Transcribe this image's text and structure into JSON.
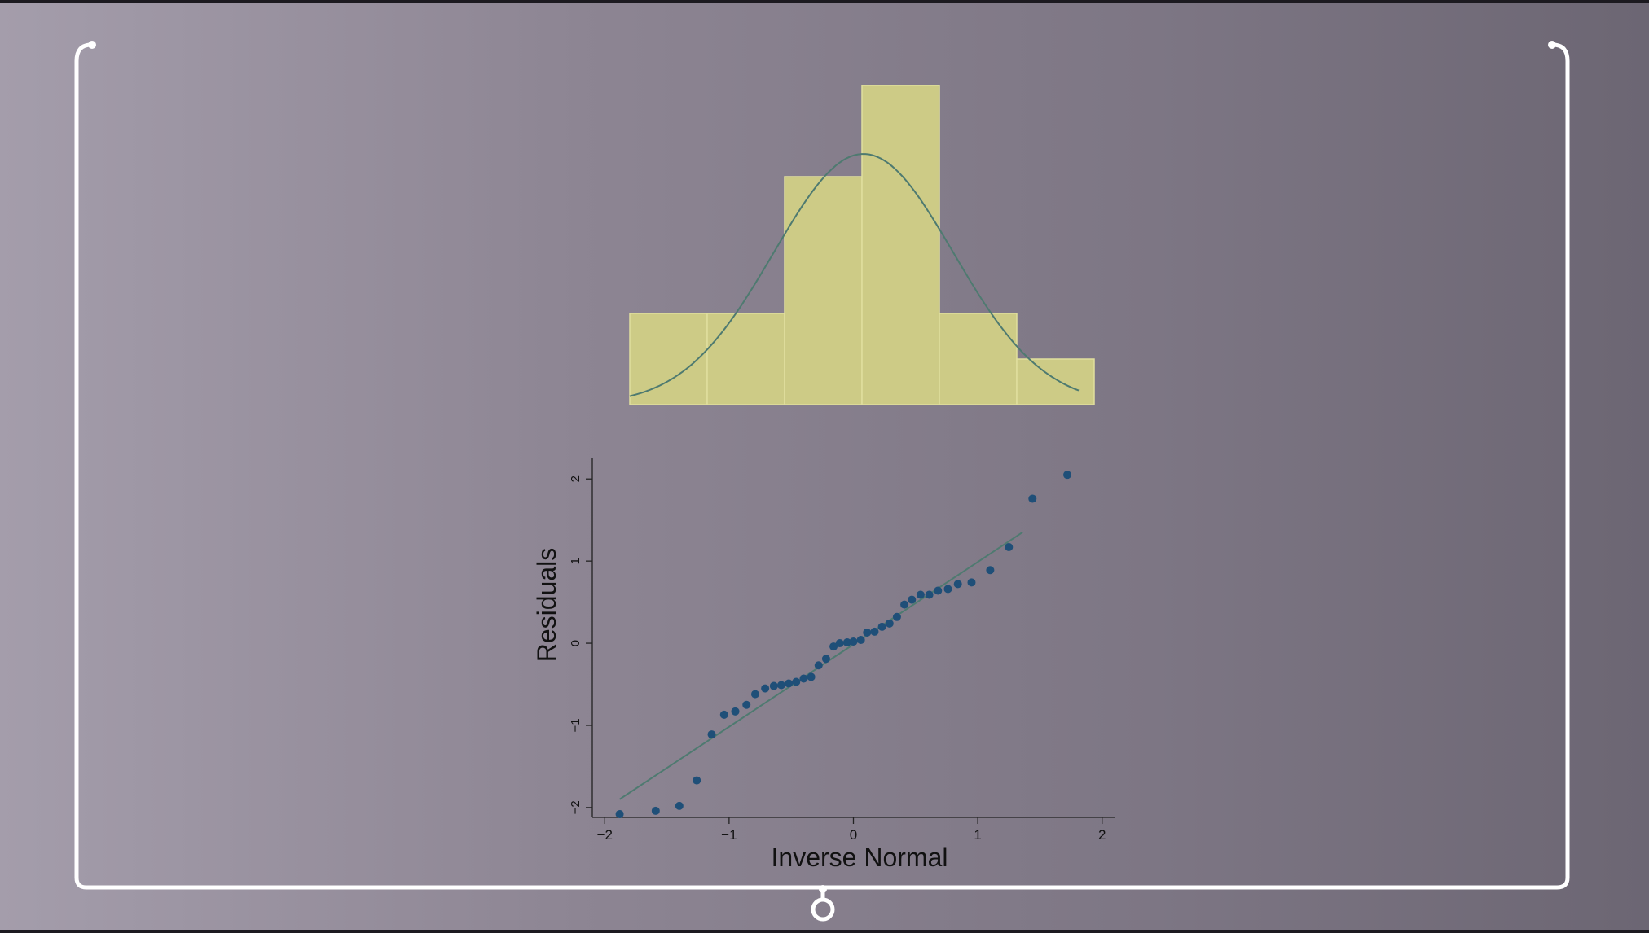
{
  "colors": {
    "bar_fill": "#cdcb86",
    "bar_edge": "#e0df9e",
    "curve": "#4e7a70",
    "point": "#1f4f78",
    "fit_line": "#4e7a70",
    "frame": "#ffffff"
  },
  "chart_data": [
    {
      "type": "bar",
      "title": "",
      "xlabel": "",
      "ylabel": "",
      "bins": [
        {
          "from": -2.0,
          "to": -1.5,
          "count": 2
        },
        {
          "from": -1.5,
          "to": -1.0,
          "count": 2
        },
        {
          "from": -1.0,
          "to": -0.5,
          "count": 5
        },
        {
          "from": -0.5,
          "to": 0.0,
          "count": 7
        },
        {
          "from": 0.0,
          "to": 0.5,
          "count": 2
        },
        {
          "from": 0.5,
          "to": 1.0,
          "count": 1
        }
      ],
      "ylim": [
        0,
        7
      ],
      "overlay": {
        "type": "normal-density",
        "mean": -0.49,
        "sd": 0.58,
        "peak": 5.5,
        "x_from": -2.0,
        "x_to": 0.9
      }
    },
    {
      "type": "scatter",
      "title": "",
      "xlabel": "Inverse Normal",
      "ylabel": "Residuals",
      "xlim": [
        -2.1,
        2.1
      ],
      "ylim": [
        -2.12,
        2.25
      ],
      "x_ticks": [
        -2,
        -1,
        0,
        1,
        2
      ],
      "y_ticks": [
        -2,
        -1,
        0,
        1,
        2
      ],
      "x_tick_labels": [
        "−2",
        "−1",
        "0",
        "1",
        "2"
      ],
      "y_tick_labels": [
        "−2",
        "−1",
        "0",
        "1",
        "2"
      ],
      "grid": false,
      "points": [
        [
          -1.88,
          -2.08
        ],
        [
          -1.59,
          -2.04
        ],
        [
          -1.4,
          -1.98
        ],
        [
          -1.26,
          -1.67
        ],
        [
          -1.14,
          -1.11
        ],
        [
          -1.04,
          -0.87
        ],
        [
          -0.95,
          -0.83
        ],
        [
          -0.86,
          -0.75
        ],
        [
          -0.79,
          -0.62
        ],
        [
          -0.71,
          -0.55
        ],
        [
          -0.64,
          -0.52
        ],
        [
          -0.58,
          -0.51
        ],
        [
          -0.52,
          -0.49
        ],
        [
          -0.46,
          -0.47
        ],
        [
          -0.4,
          -0.43
        ],
        [
          -0.34,
          -0.41
        ],
        [
          -0.28,
          -0.27
        ],
        [
          -0.22,
          -0.19
        ],
        [
          -0.16,
          -0.04
        ],
        [
          -0.11,
          0.0
        ],
        [
          -0.05,
          0.01
        ],
        [
          0.0,
          0.02
        ],
        [
          0.06,
          0.04
        ],
        [
          0.11,
          0.13
        ],
        [
          0.17,
          0.14
        ],
        [
          0.23,
          0.2
        ],
        [
          0.29,
          0.24
        ],
        [
          0.35,
          0.32
        ],
        [
          0.41,
          0.47
        ],
        [
          0.47,
          0.53
        ],
        [
          0.54,
          0.59
        ],
        [
          0.61,
          0.59
        ],
        [
          0.68,
          0.64
        ],
        [
          0.76,
          0.66
        ],
        [
          0.84,
          0.72
        ],
        [
          0.95,
          0.74
        ],
        [
          1.1,
          0.89
        ],
        [
          1.25,
          1.17
        ],
        [
          1.44,
          1.76
        ],
        [
          1.72,
          2.05
        ]
      ],
      "fit_line": [
        [
          -1.88,
          -1.9
        ],
        [
          1.36,
          1.35
        ]
      ]
    }
  ]
}
